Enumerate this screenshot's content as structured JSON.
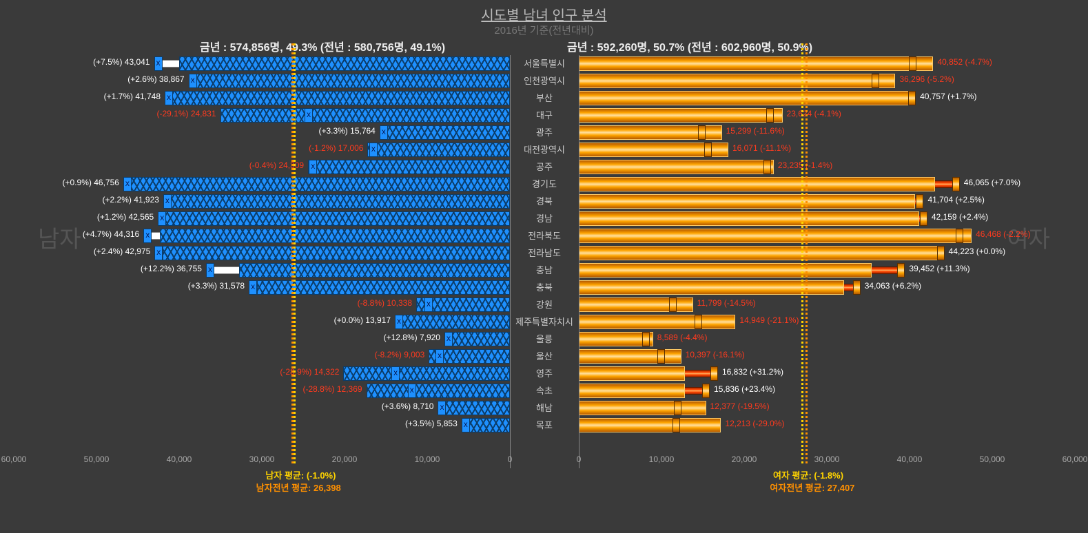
{
  "title": "시도별 남녀 인구 분석",
  "subtitle": "2016년 기준(전년대비)",
  "male_big": "남자",
  "female_big": "여자",
  "male_summary": "금년 : 574,856명, 49.3% (전년 : 580,756명, 49.1%)",
  "female_summary": "금년 : 592,260명, 50.7% (전년 : 602,960명, 50.9%)",
  "male_avg": "남자 평균: (-1.0%)",
  "male_avg_prev": "남자전년 평균: 26,398",
  "female_avg": "여자 평균: (-1.8%)",
  "female_avg_prev": "여자전년 평균: 27,407",
  "colors": {
    "bg": "#3a3a3a",
    "male_bar": "#1e90ff",
    "male_border": "#0b3d6b",
    "female_bar": "#ff4500",
    "female_arrow": "#ffa500",
    "axis": "#aaaaaa",
    "pos_label": "#ffffff",
    "neg_label": "#ff3b1f",
    "avg_color": "#ffd400",
    "avg_prev_color": "#ff9000"
  },
  "axis": {
    "max": 60000,
    "ticks": [
      0,
      10000,
      20000,
      30000,
      40000,
      50000,
      60000
    ],
    "tick_labels": [
      "0",
      "10,000",
      "20,000",
      "30,000",
      "40,000",
      "50,000",
      "60,000"
    ]
  },
  "male_avg_value": 26130,
  "male_avg_prev_value": 26398,
  "female_avg_value": 26920,
  "female_avg_prev_value": 27407,
  "categories": [
    "서울특별시",
    "인천광역시",
    "부산",
    "대구",
    "광주",
    "대전광역시",
    "공주",
    "경기도",
    "경북",
    "경남",
    "전라북도",
    "전라남도",
    "충남",
    "충북",
    "강원",
    "제주특별자치시",
    "울릉",
    "울산",
    "영주",
    "속초",
    "해남",
    "목포"
  ],
  "male": [
    {
      "v": 43041,
      "prev": 40040,
      "lab": "(+7.5%) 43,041",
      "neg": false
    },
    {
      "v": 38867,
      "prev": 37900,
      "lab": "(+2.6%) 38,867",
      "neg": false
    },
    {
      "v": 41748,
      "prev": 41050,
      "lab": "(+1.7%) 41,748",
      "neg": false
    },
    {
      "v": 24831,
      "prev": 35040,
      "lab": "(-29.1%) 24,831",
      "neg": true
    },
    {
      "v": 15764,
      "prev": 15260,
      "lab": "(+3.3%) 15,764",
      "neg": false
    },
    {
      "v": 17006,
      "prev": 17210,
      "lab": "(-1.2%) 17,006",
      "neg": true
    },
    {
      "v": 24309,
      "prev": 24408,
      "lab": "(-0.4%) 24,309",
      "neg": true
    },
    {
      "v": 46756,
      "prev": 46340,
      "lab": "(+0.9%) 46,756",
      "neg": false
    },
    {
      "v": 41923,
      "prev": 41020,
      "lab": "(+2.2%) 41,923",
      "neg": false
    },
    {
      "v": 42565,
      "prev": 42060,
      "lab": "(+1.2%) 42,565",
      "neg": false
    },
    {
      "v": 44316,
      "prev": 42330,
      "lab": "(+4.7%) 44,316",
      "neg": false
    },
    {
      "v": 42975,
      "prev": 41970,
      "lab": "(+2.4%) 42,975",
      "neg": false
    },
    {
      "v": 36755,
      "prev": 32750,
      "lab": "(+12.2%) 36,755",
      "neg": false
    },
    {
      "v": 31578,
      "prev": 30570,
      "lab": "(+3.3%) 31,578",
      "neg": false
    },
    {
      "v": 10338,
      "prev": 11330,
      "lab": "(-8.8%) 10,338",
      "neg": true
    },
    {
      "v": 13917,
      "prev": 13917,
      "lab": "(+0.0%) 13,917",
      "neg": false
    },
    {
      "v": 7920,
      "prev": 7020,
      "lab": "(+12.8%) 7,920",
      "neg": false
    },
    {
      "v": 9003,
      "prev": 9810,
      "lab": "(-8.2%) 9,003",
      "neg": true
    },
    {
      "v": 14322,
      "prev": 20130,
      "lab": "(-28.9%) 14,322",
      "neg": true
    },
    {
      "v": 12369,
      "prev": 17370,
      "lab": "(-28.8%) 12,369",
      "neg": true
    },
    {
      "v": 8710,
      "prev": 8410,
      "lab": "(+3.6%) 8,710",
      "neg": false
    },
    {
      "v": 5853,
      "prev": 5655,
      "lab": "(+3.5%) 5,853",
      "neg": false
    }
  ],
  "female": [
    {
      "v": 40852,
      "prev": 42870,
      "lab": "40,852 (-4.7%)",
      "neg": true
    },
    {
      "v": 36296,
      "prev": 38290,
      "lab": "36,296 (-5.2%)",
      "neg": true
    },
    {
      "v": 40757,
      "prev": 40070,
      "lab": "40,757 (+1.7%)",
      "neg": false
    },
    {
      "v": 23624,
      "prev": 24630,
      "lab": "23,624 (-4.1%)",
      "neg": true
    },
    {
      "v": 15299,
      "prev": 17300,
      "lab": "15,299 (-11.6%)",
      "neg": true
    },
    {
      "v": 16071,
      "prev": 18080,
      "lab": "16,071 (-11.1%)",
      "neg": true
    },
    {
      "v": 23235,
      "prev": 23570,
      "lab": "23,235 (-1.4%)",
      "neg": true
    },
    {
      "v": 46065,
      "prev": 43050,
      "lab": "46,065 (+7.0%)",
      "neg": false
    },
    {
      "v": 41704,
      "prev": 40690,
      "lab": "41,704 (+2.5%)",
      "neg": false
    },
    {
      "v": 42159,
      "prev": 41170,
      "lab": "42,159 (+2.4%)",
      "neg": false
    },
    {
      "v": 46468,
      "prev": 47510,
      "lab": "46,468 (-2.2%)",
      "neg": true
    },
    {
      "v": 44223,
      "prev": 44223,
      "lab": "44,223 (+0.0%)",
      "neg": false
    },
    {
      "v": 39452,
      "prev": 35450,
      "lab": "39,452 (+11.3%)",
      "neg": false
    },
    {
      "v": 34063,
      "prev": 32080,
      "lab": "34,063 (+6.2%)",
      "neg": false
    },
    {
      "v": 11799,
      "prev": 13800,
      "lab": "11,799 (-14.5%)",
      "neg": true
    },
    {
      "v": 14949,
      "prev": 18950,
      "lab": "14,949 (-21.1%)",
      "neg": true
    },
    {
      "v": 8589,
      "prev": 8980,
      "lab": "8,589 (-4.4%)",
      "neg": true
    },
    {
      "v": 10397,
      "prev": 12390,
      "lab": "10,397 (-16.1%)",
      "neg": true
    },
    {
      "v": 16832,
      "prev": 12830,
      "lab": "16,832 (+31.2%)",
      "neg": false
    },
    {
      "v": 15836,
      "prev": 12830,
      "lab": "15,836 (+23.4%)",
      "neg": false
    },
    {
      "v": 12377,
      "prev": 15380,
      "lab": "12,377 (-19.5%)",
      "neg": true
    },
    {
      "v": 12213,
      "prev": 17200,
      "lab": "12,213 (-29.0%)",
      "neg": true
    }
  ]
}
